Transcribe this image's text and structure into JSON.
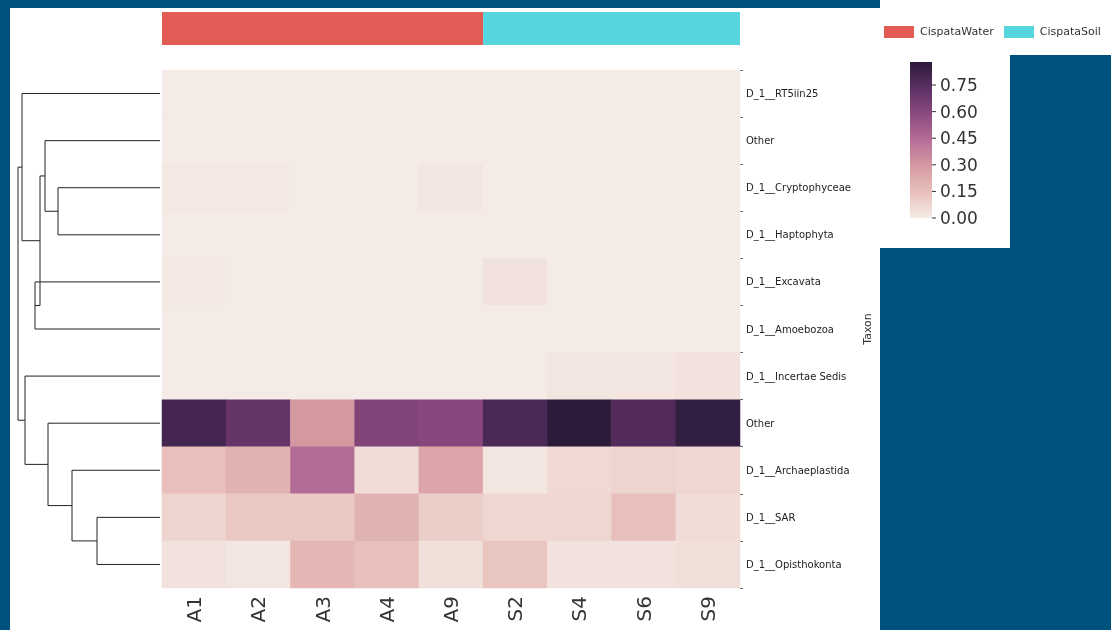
{
  "chart_data": {
    "type": "heatmap",
    "ylabel": "Taxon",
    "categories": [
      "A1",
      "A2",
      "A3",
      "A4",
      "A9",
      "S2",
      "S4",
      "S6",
      "S9"
    ],
    "y_categories": [
      "D_1__RT5iin25",
      "Other",
      "D_1__Cryptophyceae",
      "D_1__Haptophyta",
      "D_1__Excavata",
      "D_1__Amoebozoa",
      "D_1__Incertae Sedis",
      "Other",
      "D_1__Archaeplastida",
      "D_1__SAR",
      "D_1__Opisthokonta"
    ],
    "cells": [
      [
        0,
        0,
        0,
        0,
        0,
        0,
        0,
        0,
        0
      ],
      [
        0,
        0,
        0,
        0,
        0,
        0,
        0,
        0,
        0
      ],
      [
        0.01,
        0.01,
        0,
        0,
        0.02,
        0,
        0,
        0,
        0
      ],
      [
        0,
        0,
        0,
        0,
        0,
        0,
        0,
        0,
        0
      ],
      [
        0.01,
        0,
        0,
        0,
        0,
        0.03,
        0,
        0,
        0
      ],
      [
        0,
        0,
        0,
        0,
        0,
        0,
        0,
        0,
        0
      ],
      [
        0,
        0,
        0,
        0,
        0,
        0,
        0.02,
        0.02,
        0.03
      ],
      [
        0.8,
        0.7,
        0.3,
        0.62,
        0.6,
        0.78,
        0.88,
        0.76,
        0.86
      ],
      [
        0.15,
        0.2,
        0.45,
        0.05,
        0.25,
        0.02,
        0.06,
        0.08,
        0.07
      ],
      [
        0.08,
        0.12,
        0.12,
        0.2,
        0.1,
        0.07,
        0.07,
        0.15,
        0.05
      ],
      [
        0.03,
        0.02,
        0.18,
        0.15,
        0.04,
        0.13,
        0.03,
        0.03,
        0.04
      ]
    ],
    "clim": [
      0,
      0.88
    ],
    "cticks": [
      {
        "value": 0,
        "label": "0.00"
      },
      0.15,
      {
        "value": 0.3,
        "label": "0.30"
      },
      0.45,
      {
        "value": 0.6,
        "label": "0.60"
      },
      0.75
    ],
    "annotations": [
      "CispataWater",
      "CispataSoil"
    ]
  }
}
